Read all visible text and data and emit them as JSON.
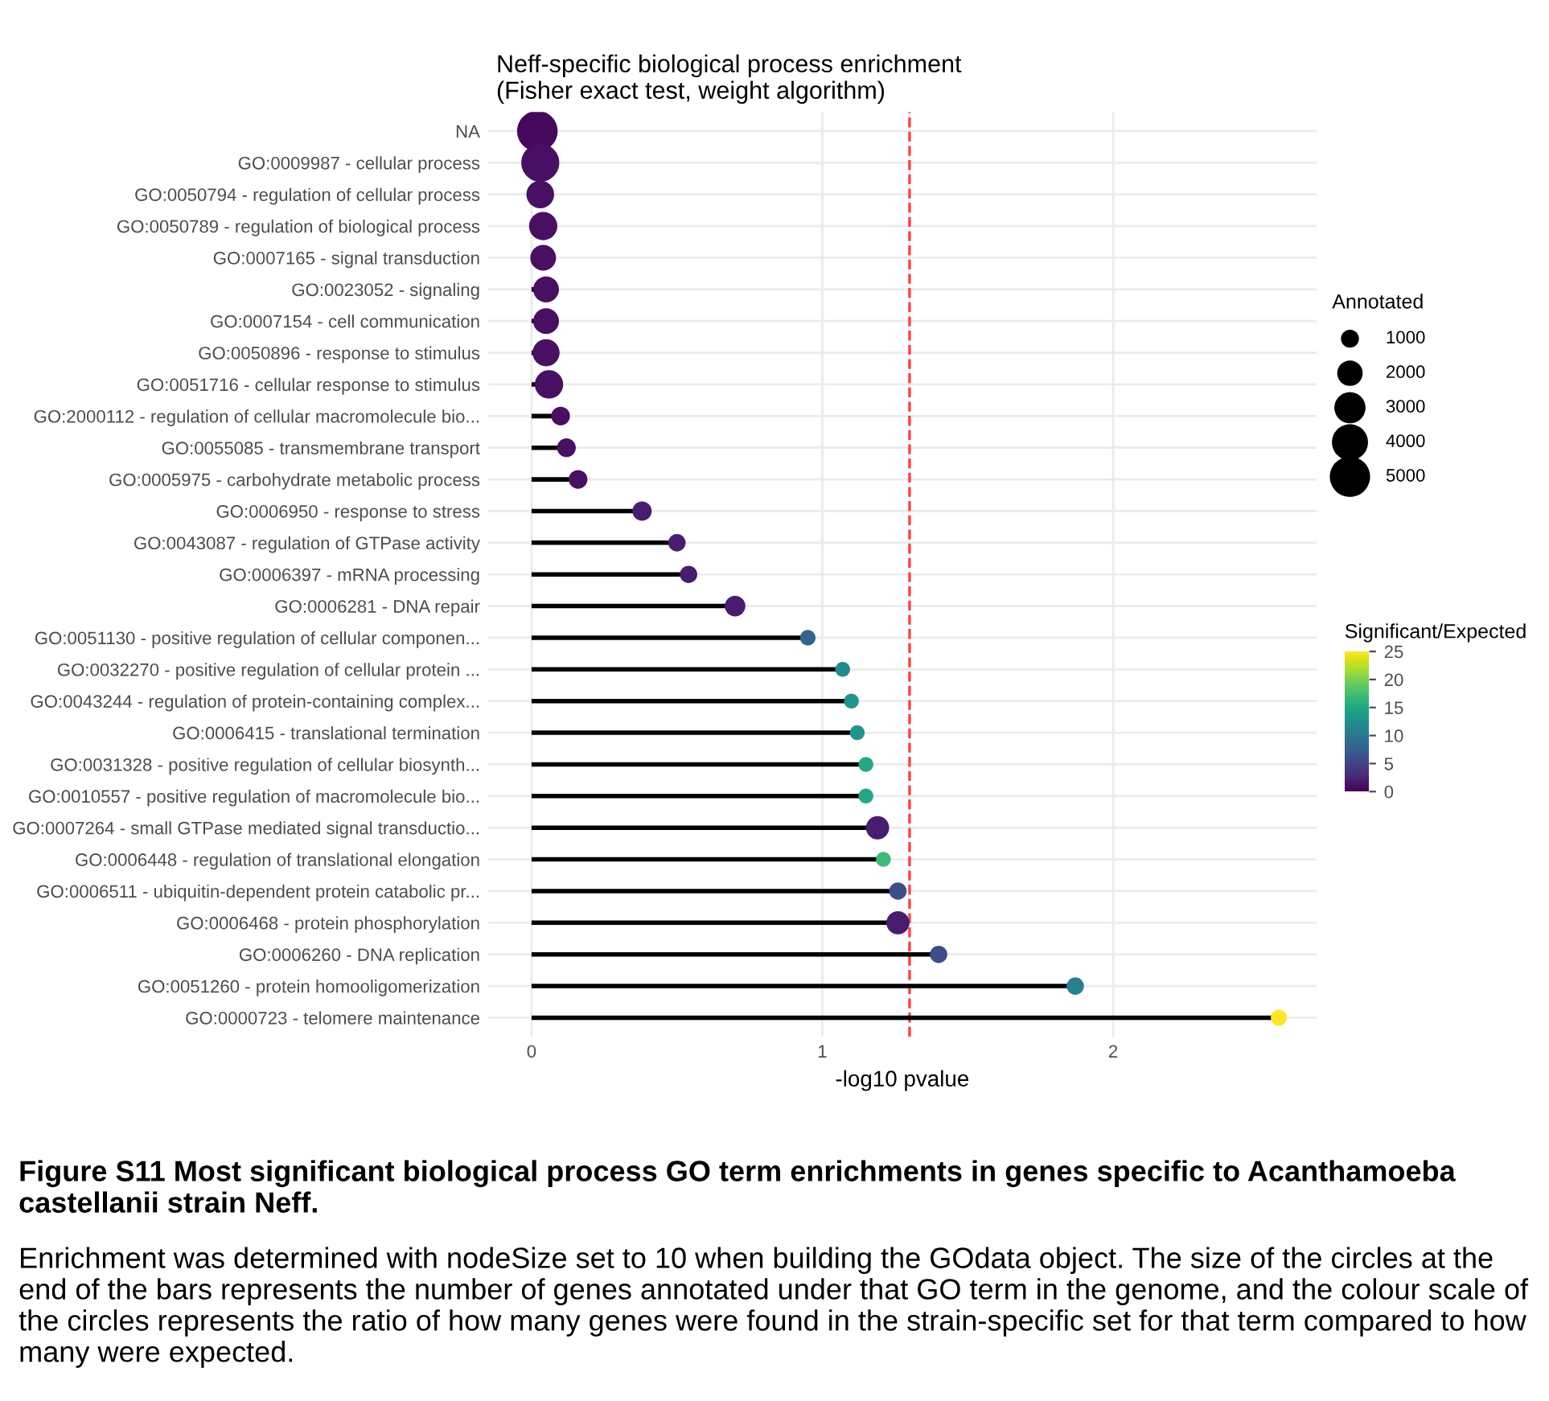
{
  "chart_data": {
    "type": "lollipop",
    "orientation": "horizontal",
    "title": "Neff-specific biological process enrichment\n(Fisher exact test, weight algorithm)",
    "xlabel": "-log10 pvalue",
    "categories": [
      "NA",
      "GO:0009987 - cellular process",
      "GO:0050794 - regulation of cellular process",
      "GO:0050789 - regulation of biological process",
      "GO:0007165 - signal transduction",
      "GO:0023052 - signaling",
      "GO:0007154 - cell communication",
      "GO:0050896 - response to stimulus",
      "GO:0051716 - cellular response to stimulus",
      "GO:2000112 - regulation of cellular macromolecule bio...",
      "GO:0055085 - transmembrane transport",
      "GO:0005975 - carbohydrate metabolic process",
      "GO:0006950 - response to stress",
      "GO:0043087 - regulation of GTPase activity",
      "GO:0006397 - mRNA processing",
      "GO:0006281 - DNA repair",
      "GO:0051130 - positive regulation of cellular componen...",
      "GO:0032270 - positive regulation of cellular protein ...",
      "GO:0043244 - regulation of protein-containing complex...",
      "GO:0006415 - translational termination",
      "GO:0031328 - positive regulation of cellular biosynth...",
      "GO:0010557 - positive regulation of macromolecule bio...",
      "GO:0007264 - small GTPase mediated signal transductio...",
      "GO:0006448 - regulation of translational elongation",
      "GO:0006511 - ubiquitin-dependent protein catabolic pr...",
      "GO:0006468 - protein phosphorylation",
      "GO:0006260 - DNA replication",
      "GO:0051260 - protein homooligomerization",
      "GO:0000723 - telomere maintenance"
    ],
    "values": [
      0.02,
      0.03,
      0.03,
      0.04,
      0.04,
      0.05,
      0.05,
      0.05,
      0.06,
      0.1,
      0.12,
      0.16,
      0.38,
      0.5,
      0.54,
      0.7,
      0.95,
      1.07,
      1.1,
      1.12,
      1.15,
      1.15,
      1.19,
      1.21,
      1.26,
      1.26,
      1.4,
      1.87,
      2.57
    ],
    "sizes": [
      5080,
      4460,
      2370,
      2480,
      2050,
      2050,
      2050,
      2260,
      2480,
      1080,
      1080,
      1080,
      1150,
      930,
      930,
      1310,
      740,
      680,
      680,
      680,
      680,
      680,
      1660,
      680,
      930,
      1660,
      930,
      930,
      800
    ],
    "size_legend": [
      1000,
      2000,
      3000,
      4000,
      5000
    ],
    "legend_title": "Annotated",
    "cvalues": [
      0.5,
      1,
      1,
      1,
      1,
      1,
      1,
      1,
      1,
      1,
      1,
      1,
      2,
      2,
      2,
      2,
      8,
      12,
      13,
      13,
      15,
      15,
      2,
      17,
      6,
      2,
      6,
      11,
      25
    ],
    "clabel": "Significant/Expected",
    "clim": [
      0,
      25
    ],
    "cticks": [
      0,
      5,
      10,
      15,
      20,
      25
    ],
    "xlim": [
      -0.15,
      2.7
    ],
    "xticks": [
      0,
      1,
      2
    ],
    "ref_lines": [
      {
        "axis": "x",
        "value": 1.3,
        "color": "#ff4040",
        "line_style": "dashed"
      }
    ],
    "grid": true,
    "annotations": [
      "Figure S11 Most significant biological process GO term enrichments in genes specific to Acanthamoeba castellanii strain Neff.",
      "Enrichment was determined with nodeSize set to 10 when building the GOdata object. The size of the circles at the end of the bars represents the number of genes annotated under that GO term in the genome, and the colour scale of the circles represents the ratio of how many genes were found in the strain-specific set for that term compared to how many were expected."
    ]
  }
}
